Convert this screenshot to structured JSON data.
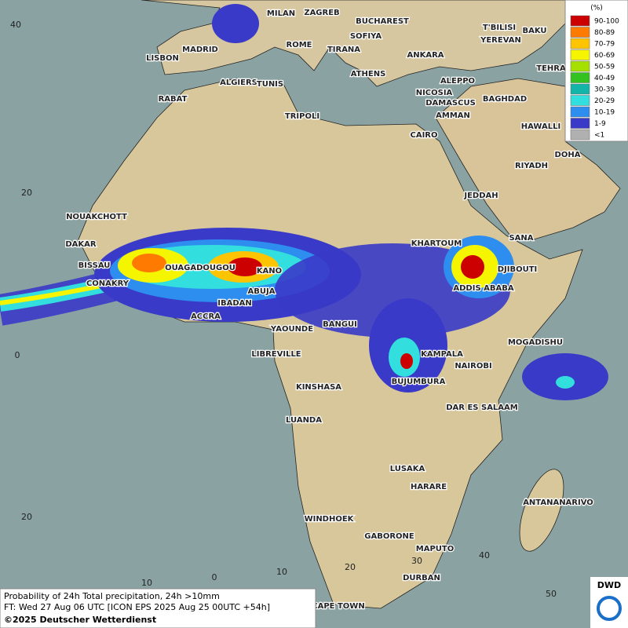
{
  "legend": {
    "unit": "(%)",
    "entries": [
      {
        "label": "90-100",
        "color": "#cc0000"
      },
      {
        "label": "80-89",
        "color": "#ff7a00"
      },
      {
        "label": "70-79",
        "color": "#ffc400"
      },
      {
        "label": "60-69",
        "color": "#f5f500"
      },
      {
        "label": "50-59",
        "color": "#a6e000"
      },
      {
        "label": "40-49",
        "color": "#33c21f"
      },
      {
        "label": "30-39",
        "color": "#12b5a8"
      },
      {
        "label": "20-29",
        "color": "#33dede"
      },
      {
        "label": "10-19",
        "color": "#2e8ef0"
      },
      {
        "label": "1-9",
        "color": "#3a3ac8"
      },
      {
        "label": "<1",
        "color": "#b0b0b0"
      }
    ]
  },
  "cities": [
    "MILAN",
    "ZAGREB",
    "BUCHAREST",
    "SOFIYA",
    "ROME",
    "TIRANA",
    "MADRID",
    "LISBON",
    "ANKARA",
    "T'BILISI",
    "YEREVAN",
    "BAKU",
    "TEHRA",
    "ATHENS",
    "ALGIERS",
    "TUNIS",
    "ALEPPO",
    "NICOSIA",
    "RABAT",
    "BAGHDAD",
    "DAMASCUS",
    "AMMAN",
    "TRIPOLI",
    "HAWALLI",
    "CAIRO",
    "DOHA",
    "RIYADH",
    "JEDDAH",
    "NOUAKCHOTT",
    "SANA",
    "KHARTOUM",
    "DAKAR",
    "BISSAU",
    "OUAGADOUGOU",
    "KANO",
    "DJIBOUTI",
    "CONAKRY",
    "ABUJA",
    "ADDIS ABABA",
    "IBADAN",
    "ACCRA",
    "YAOUNDE",
    "BANGUI",
    "MOGADISHU",
    "LIBREVILLE",
    "KAMPALA",
    "NAIROBI",
    "BUJUMBURA",
    "KINSHASA",
    "DAR ES SALAAM",
    "LUANDA",
    "LUSAKA",
    "HARARE",
    "ANTANANARIVO",
    "WINDHOEK",
    "GABORONE",
    "MAPUTO",
    "DURBAN",
    "CAPE TOWN"
  ],
  "grid_labels": {
    "latitudes": [
      "40",
      "20",
      "0",
      "20"
    ],
    "longitudes": [
      "10",
      "0",
      "10",
      "20",
      "30",
      "40",
      "50"
    ]
  },
  "footer": {
    "line1": "Probability of 24h Total precipitation, 24h >10mm",
    "line2": "FT: Wed 27 Aug 06 UTC [ICON EPS 2025 Aug 25 00UTC +54h]",
    "line3": "©2025 Deutscher Wetterdienst"
  },
  "logo": "DWD"
}
